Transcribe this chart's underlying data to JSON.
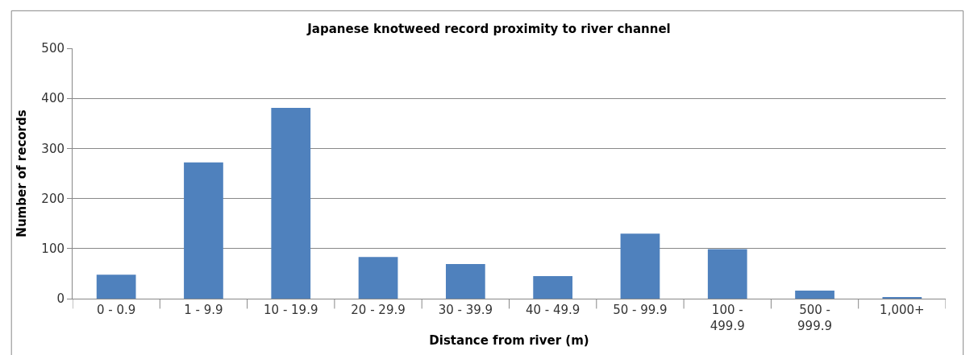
{
  "chart_data": {
    "type": "bar",
    "title": "Japanese knotweed record proximity to river channel",
    "xlabel": "Distance from river (m)",
    "ylabel": "Number of records",
    "categories": [
      "0 - 0.9",
      "1 - 9.9",
      "10 - 19.9",
      "20 - 29.9",
      "30 - 39.9",
      "40 - 49.9",
      "50 - 99.9",
      "100 - 499.9",
      "500 - 999.9",
      "1,000+"
    ],
    "values": [
      48,
      272,
      381,
      83,
      69,
      45,
      130,
      99,
      16,
      2
    ],
    "color": "#4f81bd",
    "ylim": [
      0,
      500
    ],
    "yticks": [
      0,
      100,
      200,
      300,
      400,
      500
    ],
    "grid": "y"
  }
}
